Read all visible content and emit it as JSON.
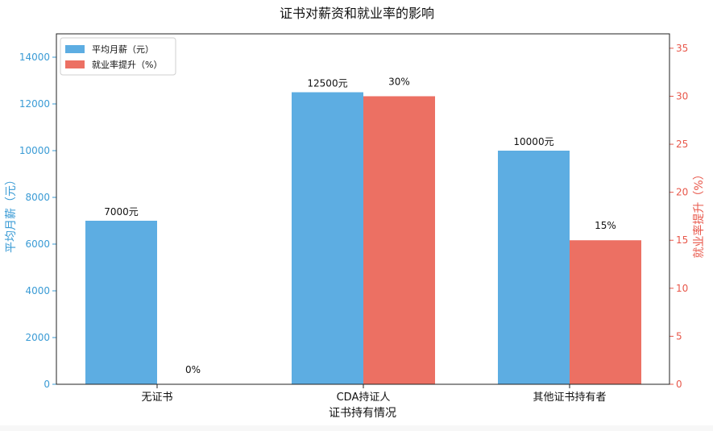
{
  "chart_data": {
    "type": "bar",
    "title": "证书对薪资和就业率的影响",
    "xlabel": "证书持有情况",
    "categories": [
      "无证书",
      "CDA持证人",
      "其他证书持有者"
    ],
    "y_left": {
      "label": "平均月薪（元）",
      "ylim": [
        0,
        15000
      ],
      "ticks": [
        0,
        2000,
        4000,
        6000,
        8000,
        10000,
        12000,
        14000
      ],
      "color": "#3a9bd5"
    },
    "y_right": {
      "label": "就业率提升（%）",
      "ylim": [
        0,
        36.5
      ],
      "ticks": [
        0,
        5,
        10,
        15,
        20,
        25,
        30,
        35
      ],
      "color": "#e8574a"
    },
    "series": [
      {
        "name": "平均月薪（元）",
        "axis": "left",
        "color": "#5dade2",
        "values": [
          7000,
          12500,
          10000
        ],
        "labels": [
          "7000元",
          "12500元",
          "10000元"
        ]
      },
      {
        "name": "就业率提升（%）",
        "axis": "right",
        "color": "#ec7063",
        "values": [
          0,
          30,
          15
        ],
        "labels": [
          "0%",
          "30%",
          "15%"
        ]
      }
    ],
    "legend_position": "top-left",
    "grid": false
  }
}
